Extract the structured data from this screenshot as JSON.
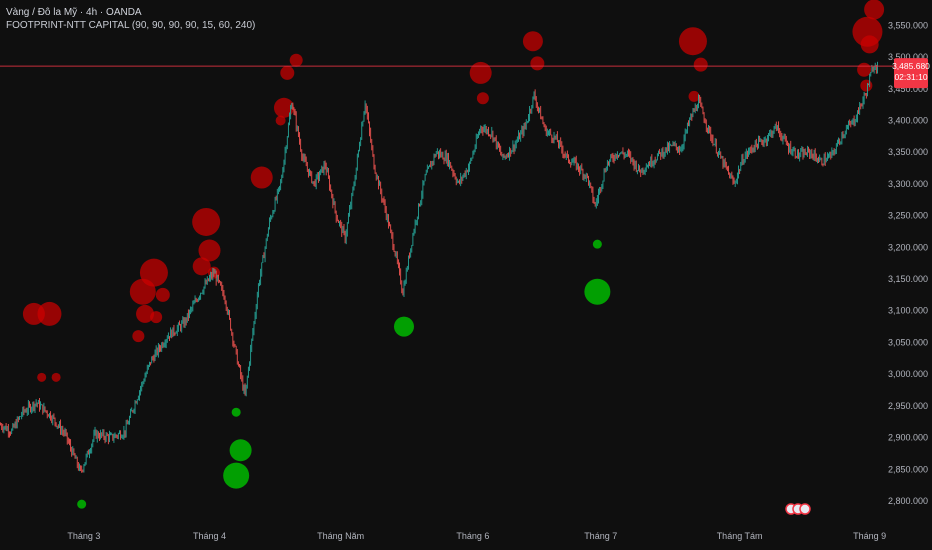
{
  "header": {
    "symbol": "Vàng / Đô la Mỹ · 4h · OANDA",
    "indicator": "FOOTPRINT-NTT CAPITAL (90, 90, 90, 90, 15, 60, 240)"
  },
  "price_label": {
    "price": "3,485.680",
    "countdown": "02:31:10"
  },
  "colors": {
    "background": "#0f0f0f",
    "bull": "#26a69a",
    "bear": "#ef5350",
    "sell_bubble": "#cc0000",
    "buy_bubble": "#00b800",
    "price_line": "#f23645",
    "axis_text": "#b2b5be"
  },
  "chart_data": {
    "type": "candlestick",
    "y_axis": {
      "ticks": [
        2800,
        2850,
        2900,
        2950,
        3000,
        3050,
        3100,
        3150,
        3200,
        3250,
        3300,
        3350,
        3400,
        3450,
        3500,
        3550
      ],
      "tick_labels": [
        "2,800.000",
        "2,850.000",
        "2,900.000",
        "2,950.000",
        "3,000.000",
        "3,050.000",
        "3,100.000",
        "3,150.000",
        "3,200.000",
        "3,250.000",
        "3,300.000",
        "3,350.000",
        "3,400.000",
        "3,450.000",
        "3,500.000",
        "3,550.000"
      ],
      "range": [
        2770,
        3590
      ]
    },
    "x_axis": {
      "ticks": [
        {
          "label": "Tháng 3",
          "index": 75
        },
        {
          "label": "Tháng 4",
          "index": 188
        },
        {
          "label": "Tháng Năm",
          "index": 306
        },
        {
          "label": "Tháng 6",
          "index": 425
        },
        {
          "label": "Tháng 7",
          "index": 540
        },
        {
          "label": "Tháng Tám",
          "index": 665
        },
        {
          "label": "Tháng 9",
          "index": 782
        }
      ],
      "count": 790
    },
    "current_price": 3485.68,
    "close_path": [
      [
        0,
        2920
      ],
      [
        10,
        2910
      ],
      [
        20,
        2940
      ],
      [
        32,
        2955
      ],
      [
        45,
        2935
      ],
      [
        58,
        2905
      ],
      [
        72,
        2845
      ],
      [
        85,
        2905
      ],
      [
        100,
        2900
      ],
      [
        112,
        2910
      ],
      [
        122,
        2960
      ],
      [
        135,
        3020
      ],
      [
        150,
        3060
      ],
      [
        165,
        3080
      ],
      [
        180,
        3130
      ],
      [
        192,
        3160
      ],
      [
        202,
        3120
      ],
      [
        212,
        3030
      ],
      [
        220,
        2965
      ],
      [
        232,
        3140
      ],
      [
        242,
        3240
      ],
      [
        252,
        3300
      ],
      [
        262,
        3430
      ],
      [
        272,
        3340
      ],
      [
        282,
        3300
      ],
      [
        292,
        3330
      ],
      [
        302,
        3250
      ],
      [
        310,
        3215
      ],
      [
        318,
        3300
      ],
      [
        328,
        3430
      ],
      [
        336,
        3330
      ],
      [
        346,
        3260
      ],
      [
        354,
        3200
      ],
      [
        362,
        3130
      ],
      [
        372,
        3230
      ],
      [
        382,
        3310
      ],
      [
        392,
        3350
      ],
      [
        402,
        3340
      ],
      [
        412,
        3300
      ],
      [
        422,
        3330
      ],
      [
        432,
        3390
      ],
      [
        442,
        3380
      ],
      [
        452,
        3340
      ],
      [
        462,
        3360
      ],
      [
        472,
        3390
      ],
      [
        480,
        3440
      ],
      [
        490,
        3385
      ],
      [
        500,
        3370
      ],
      [
        510,
        3340
      ],
      [
        518,
        3330
      ],
      [
        528,
        3310
      ],
      [
        535,
        3265
      ],
      [
        545,
        3330
      ],
      [
        555,
        3350
      ],
      [
        565,
        3345
      ],
      [
        575,
        3320
      ],
      [
        585,
        3335
      ],
      [
        595,
        3350
      ],
      [
        605,
        3360
      ],
      [
        612,
        3355
      ],
      [
        620,
        3400
      ],
      [
        628,
        3430
      ],
      [
        638,
        3380
      ],
      [
        648,
        3340
      ],
      [
        660,
        3300
      ],
      [
        668,
        3340
      ],
      [
        678,
        3360
      ],
      [
        688,
        3370
      ],
      [
        698,
        3390
      ],
      [
        708,
        3360
      ],
      [
        718,
        3345
      ],
      [
        728,
        3350
      ],
      [
        738,
        3335
      ],
      [
        748,
        3345
      ],
      [
        758,
        3380
      ],
      [
        768,
        3400
      ],
      [
        778,
        3440
      ],
      [
        786,
        3490
      ],
      [
        789,
        3486
      ]
    ],
    "sell_bubbles": [
      {
        "index": 30,
        "price": 3095,
        "r": 11
      },
      {
        "index": 44,
        "price": 3095,
        "r": 12
      },
      {
        "index": 37,
        "price": 2995,
        "r": 4.5
      },
      {
        "index": 50,
        "price": 2995,
        "r": 4.5
      },
      {
        "index": 128,
        "price": 3130,
        "r": 13
      },
      {
        "index": 138,
        "price": 3160,
        "r": 14
      },
      {
        "index": 130,
        "price": 3095,
        "r": 9
      },
      {
        "index": 124,
        "price": 3060,
        "r": 6
      },
      {
        "index": 146,
        "price": 3125,
        "r": 7
      },
      {
        "index": 140,
        "price": 3090,
        "r": 6
      },
      {
        "index": 185,
        "price": 3240,
        "r": 14
      },
      {
        "index": 188,
        "price": 3195,
        "r": 11
      },
      {
        "index": 181,
        "price": 3170,
        "r": 9
      },
      {
        "index": 192,
        "price": 3160,
        "r": 6
      },
      {
        "index": 235,
        "price": 3310,
        "r": 11
      },
      {
        "index": 255,
        "price": 3420,
        "r": 10
      },
      {
        "index": 258,
        "price": 3475,
        "r": 7
      },
      {
        "index": 266,
        "price": 3495,
        "r": 6.5
      },
      {
        "index": 252,
        "price": 3400,
        "r": 5
      },
      {
        "index": 432,
        "price": 3475,
        "r": 11
      },
      {
        "index": 434,
        "price": 3435,
        "r": 6
      },
      {
        "index": 479,
        "price": 3525,
        "r": 10
      },
      {
        "index": 483,
        "price": 3490,
        "r": 7
      },
      {
        "index": 623,
        "price": 3525,
        "r": 14
      },
      {
        "index": 630,
        "price": 3488,
        "r": 7
      },
      {
        "index": 624,
        "price": 3438,
        "r": 5.5
      },
      {
        "index": 780,
        "price": 3540,
        "r": 15
      },
      {
        "index": 786,
        "price": 3575,
        "r": 10
      },
      {
        "index": 782,
        "price": 3520,
        "r": 9
      },
      {
        "index": 777,
        "price": 3480,
        "r": 7
      },
      {
        "index": 779,
        "price": 3455,
        "r": 6
      }
    ],
    "buy_bubbles": [
      {
        "index": 73,
        "price": 2795,
        "r": 4.5
      },
      {
        "index": 212,
        "price": 2940,
        "r": 4.5
      },
      {
        "index": 216,
        "price": 2880,
        "r": 11
      },
      {
        "index": 212,
        "price": 2840,
        "r": 13
      },
      {
        "index": 363,
        "price": 3075,
        "r": 10
      },
      {
        "index": 537,
        "price": 3205,
        "r": 4.5
      },
      {
        "index": 537,
        "price": 3130,
        "r": 13
      }
    ]
  }
}
